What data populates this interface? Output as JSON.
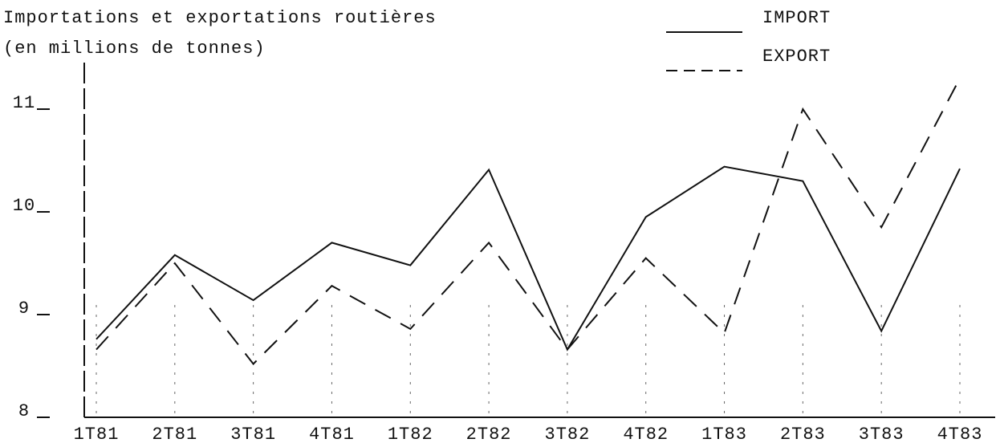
{
  "chart_data": {
    "type": "line",
    "title": "Importations et exportations routières",
    "subtitle": "(en millions de tonnes)",
    "categories": [
      "1T81",
      "2T81",
      "3T81",
      "4T81",
      "1T82",
      "2T82",
      "3T82",
      "4T82",
      "1T83",
      "2T83",
      "3T83",
      "4T83"
    ],
    "series": [
      {
        "name": "IMPORT",
        "color": "#111111",
        "dash": "solid",
        "values": [
          8.76,
          9.58,
          9.14,
          9.7,
          9.48,
          10.41,
          8.66,
          9.95,
          10.44,
          10.3,
          8.84,
          10.42
        ]
      },
      {
        "name": "EXPORT",
        "color": "#111111",
        "dash": "dashed",
        "values": [
          8.66,
          9.5,
          8.52,
          9.28,
          8.86,
          9.7,
          8.66,
          9.55,
          8.82,
          11.0,
          9.85,
          11.3
        ]
      }
    ],
    "ylim": [
      8,
      11.5
    ],
    "yticks": [
      8,
      9,
      10,
      11
    ],
    "legend": "top-right"
  }
}
